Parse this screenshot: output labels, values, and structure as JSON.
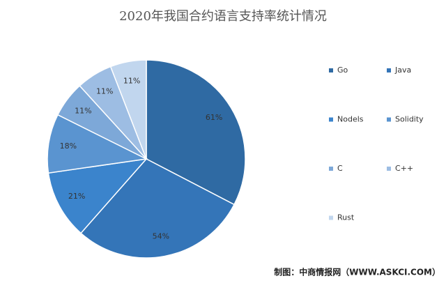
{
  "chart_data": {
    "type": "pie",
    "title": "2020年我国合约语言支持率统计情况",
    "categories": [
      "Go",
      "Java",
      "Nodels",
      "Solidity",
      "C",
      "C++",
      "Rust"
    ],
    "values": [
      61,
      54,
      21,
      18,
      11,
      11,
      11
    ],
    "value_labels": [
      "61%",
      "54%",
      "21%",
      "18%",
      "11%",
      "11%",
      "11%"
    ],
    "colors": [
      "#2f6aa3",
      "#3475b8",
      "#3b84cc",
      "#5a94d0",
      "#7da8d8",
      "#9dbde3",
      "#c1d6ee"
    ],
    "legend": "right",
    "source": "制图：中商情报网（WWW.ASKCI.COM）"
  }
}
